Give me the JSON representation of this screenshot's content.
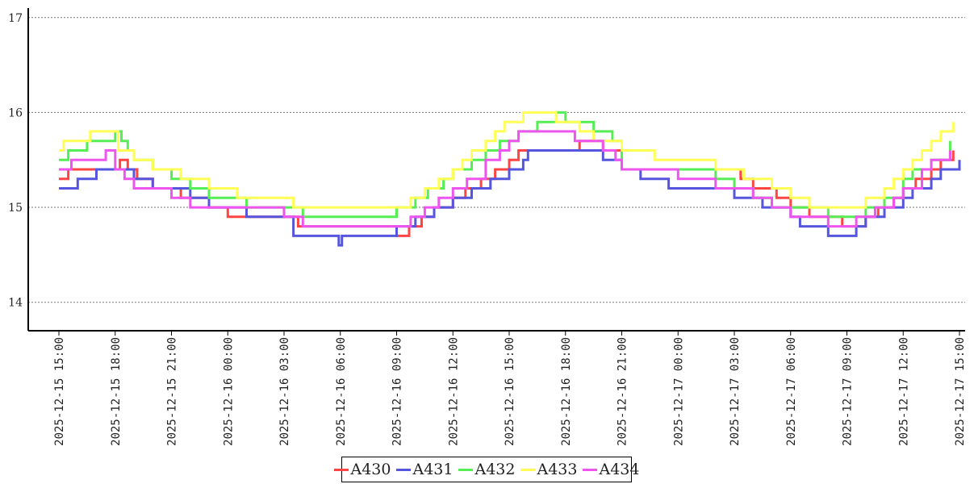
{
  "chart_data": {
    "type": "line",
    "title": "",
    "xlabel": "",
    "ylabel": "",
    "ylim": [
      13.7,
      17.1
    ],
    "yticks": [
      14,
      15,
      16,
      17
    ],
    "xlim": [
      "2025-12-15 14:00",
      "2025-12-17 15:00"
    ],
    "xticks": [
      "2025-12-15 15:00",
      "2025-12-15 18:00",
      "2025-12-15 21:00",
      "2025-12-16 00:00",
      "2025-12-16 03:00",
      "2025-12-16 06:00",
      "2025-12-16 09:00",
      "2025-12-16 12:00",
      "2025-12-16 15:00",
      "2025-12-16 18:00",
      "2025-12-16 21:00",
      "2025-12-17 00:00",
      "2025-12-17 03:00",
      "2025-12-17 06:00",
      "2025-12-17 09:00",
      "2025-12-17 12:00",
      "2025-12-17 15:00"
    ],
    "grid": "y-dashed",
    "legend_position": "bottom-center",
    "series": [
      {
        "name": "A430",
        "color": "#ff4444",
        "x": [
          "2025-12-15 15:00",
          "2025-12-15 15:30",
          "2025-12-15 18:15",
          "2025-12-15 18:40",
          "2025-12-15 19:10",
          "2025-12-15 20:00",
          "2025-12-15 21:30",
          "2025-12-15 23:00",
          "2025-12-16 00:00",
          "2025-12-16 01:00",
          "2025-12-16 02:15",
          "2025-12-16 03:45",
          "2025-12-16 09:00",
          "2025-12-16 09:40",
          "2025-12-16 10:20",
          "2025-12-16 11:00",
          "2025-12-16 12:00",
          "2025-12-16 12:40",
          "2025-12-16 13:30",
          "2025-12-16 14:15",
          "2025-12-16 15:00",
          "2025-12-16 15:30",
          "2025-12-16 18:45",
          "2025-12-16 20:00",
          "2025-12-16 21:00",
          "2025-12-17 03:20",
          "2025-12-17 04:00",
          "2025-12-17 05:15",
          "2025-12-17 06:00",
          "2025-12-17 07:00",
          "2025-12-17 08:00",
          "2025-12-17 08:45",
          "2025-12-17 09:20",
          "2025-12-17 10:00",
          "2025-12-17 10:40",
          "2025-12-17 11:30",
          "2025-12-17 12:00",
          "2025-12-17 12:40",
          "2025-12-17 13:30",
          "2025-12-17 14:00",
          "2025-12-17 14:40"
        ],
        "y": [
          15.3,
          15.4,
          15.5,
          15.4,
          15.3,
          15.2,
          15.1,
          15.0,
          14.9,
          14.9,
          14.9,
          14.8,
          14.7,
          14.8,
          14.9,
          15.0,
          15.1,
          15.2,
          15.3,
          15.4,
          15.5,
          15.6,
          15.7,
          15.6,
          15.4,
          15.3,
          15.2,
          15.1,
          15.0,
          14.9,
          14.9,
          14.8,
          14.8,
          14.9,
          15.0,
          15.1,
          15.2,
          15.3,
          15.4,
          15.5,
          15.6
        ]
      },
      {
        "name": "A431",
        "color": "#5555dd",
        "x": [
          "2025-12-15 15:00",
          "2025-12-15 15:30",
          "2025-12-15 16:00",
          "2025-12-15 17:00",
          "2025-12-15 18:00",
          "2025-12-15 19:00",
          "2025-12-15 20:00",
          "2025-12-15 22:00",
          "2025-12-15 23:00",
          "2025-12-16 00:00",
          "2025-12-16 01:00",
          "2025-12-16 03:30",
          "2025-12-16 05:55",
          "2025-12-16 06:05",
          "2025-12-16 09:00",
          "2025-12-16 10:00",
          "2025-12-16 11:00",
          "2025-12-16 12:00",
          "2025-12-16 13:00",
          "2025-12-16 14:00",
          "2025-12-16 15:00",
          "2025-12-16 15:45",
          "2025-12-16 16:00",
          "2025-12-16 17:00",
          "2025-12-16 19:00",
          "2025-12-16 20:00",
          "2025-12-16 21:00",
          "2025-12-16 22:00",
          "2025-12-16 23:30",
          "2025-12-17 01:00",
          "2025-12-17 03:00",
          "2025-12-17 04:30",
          "2025-12-17 06:00",
          "2025-12-17 06:30",
          "2025-12-17 07:00",
          "2025-12-17 08:00",
          "2025-12-17 08:30",
          "2025-12-17 09:30",
          "2025-12-17 10:00",
          "2025-12-17 11:00",
          "2025-12-17 12:00",
          "2025-12-17 12:30",
          "2025-12-17 13:30",
          "2025-12-17 14:00",
          "2025-12-17 15:00"
        ],
        "y": [
          15.2,
          15.2,
          15.3,
          15.4,
          15.4,
          15.3,
          15.2,
          15.1,
          15.0,
          15.0,
          14.9,
          14.7,
          14.6,
          14.7,
          14.8,
          14.9,
          15.0,
          15.1,
          15.2,
          15.3,
          15.4,
          15.5,
          15.6,
          15.6,
          15.6,
          15.5,
          15.4,
          15.3,
          15.2,
          15.2,
          15.1,
          15.0,
          14.9,
          14.8,
          14.8,
          14.7,
          14.7,
          14.8,
          14.9,
          15.0,
          15.1,
          15.2,
          15.3,
          15.4,
          15.5
        ]
      },
      {
        "name": "A432",
        "color": "#55ee55",
        "x": [
          "2025-12-15 15:00",
          "2025-12-15 15:30",
          "2025-12-15 16:00",
          "2025-12-15 16:30",
          "2025-12-15 17:00",
          "2025-12-15 18:00",
          "2025-12-15 18:20",
          "2025-12-15 18:40",
          "2025-12-15 19:00",
          "2025-12-15 20:00",
          "2025-12-15 21:00",
          "2025-12-15 22:00",
          "2025-12-15 23:00",
          "2025-12-16 01:00",
          "2025-12-16 04:00",
          "2025-12-16 07:00",
          "2025-12-16 09:00",
          "2025-12-16 10:00",
          "2025-12-16 10:40",
          "2025-12-16 11:30",
          "2025-12-16 12:00",
          "2025-12-16 13:00",
          "2025-12-16 13:45",
          "2025-12-16 14:30",
          "2025-12-16 15:00",
          "2025-12-16 15:30",
          "2025-12-16 16:00",
          "2025-12-16 16:30",
          "2025-12-16 17:30",
          "2025-12-16 18:00",
          "2025-12-16 19:30",
          "2025-12-16 20:30",
          "2025-12-16 21:00",
          "2025-12-17 00:00",
          "2025-12-17 02:00",
          "2025-12-17 03:00",
          "2025-12-17 04:00",
          "2025-12-17 05:00",
          "2025-12-17 06:00",
          "2025-12-17 08:00",
          "2025-12-17 09:30",
          "2025-12-17 10:00",
          "2025-12-17 11:00",
          "2025-12-17 12:00",
          "2025-12-17 12:30",
          "2025-12-17 13:30",
          "2025-12-17 14:30"
        ],
        "y": [
          15.5,
          15.6,
          15.6,
          15.7,
          15.7,
          15.8,
          15.7,
          15.6,
          15.5,
          15.4,
          15.3,
          15.2,
          15.1,
          15.0,
          14.9,
          14.9,
          15.0,
          15.1,
          15.2,
          15.3,
          15.4,
          15.5,
          15.6,
          15.7,
          15.7,
          15.8,
          15.8,
          15.9,
          16.0,
          15.9,
          15.8,
          15.7,
          15.4,
          15.4,
          15.3,
          15.2,
          15.1,
          15.0,
          15.0,
          14.9,
          14.9,
          15.0,
          15.1,
          15.3,
          15.4,
          15.5,
          15.7
        ]
      },
      {
        "name": "A433",
        "color": "#ffff55",
        "x": [
          "2025-12-15 15:00",
          "2025-12-15 15:15",
          "2025-12-15 16:00",
          "2025-12-15 16:40",
          "2025-12-15 18:10",
          "2025-12-15 19:00",
          "2025-12-15 20:00",
          "2025-12-15 21:30",
          "2025-12-15 23:00",
          "2025-12-16 00:30",
          "2025-12-16 02:00",
          "2025-12-16 03:30",
          "2025-12-16 09:00",
          "2025-12-16 09:45",
          "2025-12-16 10:30",
          "2025-12-16 11:15",
          "2025-12-16 12:00",
          "2025-12-16 12:30",
          "2025-12-16 13:00",
          "2025-12-16 13:45",
          "2025-12-16 14:15",
          "2025-12-16 14:45",
          "2025-12-16 15:15",
          "2025-12-16 15:45",
          "2025-12-16 16:15",
          "2025-12-16 17:30",
          "2025-12-16 18:00",
          "2025-12-16 18:45",
          "2025-12-16 19:30",
          "2025-12-16 21:00",
          "2025-12-16 22:45",
          "2025-12-17 01:00",
          "2025-12-17 02:00",
          "2025-12-17 03:30",
          "2025-12-17 05:00",
          "2025-12-17 06:00",
          "2025-12-17 07:00",
          "2025-12-17 08:30",
          "2025-12-17 09:00",
          "2025-12-17 10:00",
          "2025-12-17 11:00",
          "2025-12-17 11:30",
          "2025-12-17 12:00",
          "2025-12-17 12:30",
          "2025-12-17 13:00",
          "2025-12-17 13:30",
          "2025-12-17 14:00",
          "2025-12-17 14:40"
        ],
        "y": [
          15.6,
          15.7,
          15.7,
          15.8,
          15.6,
          15.5,
          15.4,
          15.3,
          15.2,
          15.1,
          15.1,
          15.0,
          15.0,
          15.1,
          15.2,
          15.3,
          15.4,
          15.5,
          15.6,
          15.7,
          15.8,
          15.9,
          15.9,
          16.0,
          16.0,
          15.9,
          15.9,
          15.8,
          15.7,
          15.6,
          15.5,
          15.5,
          15.4,
          15.3,
          15.2,
          15.1,
          15.0,
          15.0,
          15.0,
          15.1,
          15.2,
          15.3,
          15.4,
          15.5,
          15.6,
          15.7,
          15.8,
          15.9
        ]
      },
      {
        "name": "A434",
        "color": "#ee55ee",
        "x": [
          "2025-12-15 15:00",
          "2025-12-15 15:40",
          "2025-12-15 17:30",
          "2025-12-15 18:00",
          "2025-12-15 18:30",
          "2025-12-15 19:00",
          "2025-12-15 20:00",
          "2025-12-15 21:00",
          "2025-12-15 22:00",
          "2025-12-16 00:30",
          "2025-12-16 03:00",
          "2025-12-16 04:00",
          "2025-12-16 05:00",
          "2025-12-16 09:00",
          "2025-12-16 09:45",
          "2025-12-16 10:30",
          "2025-12-16 11:15",
          "2025-12-16 12:00",
          "2025-12-16 12:45",
          "2025-12-16 13:45",
          "2025-12-16 14:30",
          "2025-12-16 15:00",
          "2025-12-16 15:30",
          "2025-12-16 18:30",
          "2025-12-16 20:00",
          "2025-12-16 20:40",
          "2025-12-16 21:00",
          "2025-12-16 22:00",
          "2025-12-17 00:00",
          "2025-12-17 01:00",
          "2025-12-17 02:00",
          "2025-12-17 04:00",
          "2025-12-17 05:00",
          "2025-12-17 06:00",
          "2025-12-17 07:00",
          "2025-12-17 08:00",
          "2025-12-17 09:00",
          "2025-12-17 09:30",
          "2025-12-17 10:30",
          "2025-12-17 11:30",
          "2025-12-17 12:00",
          "2025-12-17 13:00",
          "2025-12-17 13:30",
          "2025-12-17 14:30"
        ],
        "y": [
          15.4,
          15.5,
          15.6,
          15.4,
          15.3,
          15.2,
          15.2,
          15.1,
          15.0,
          15.0,
          14.9,
          14.8,
          14.8,
          14.8,
          14.9,
          15.0,
          15.1,
          15.2,
          15.3,
          15.5,
          15.6,
          15.7,
          15.8,
          15.7,
          15.6,
          15.5,
          15.4,
          15.4,
          15.3,
          15.3,
          15.2,
          15.1,
          15.0,
          14.9,
          14.9,
          14.8,
          14.8,
          14.9,
          15.0,
          15.1,
          15.2,
          15.4,
          15.5,
          15.6
        ]
      }
    ]
  }
}
